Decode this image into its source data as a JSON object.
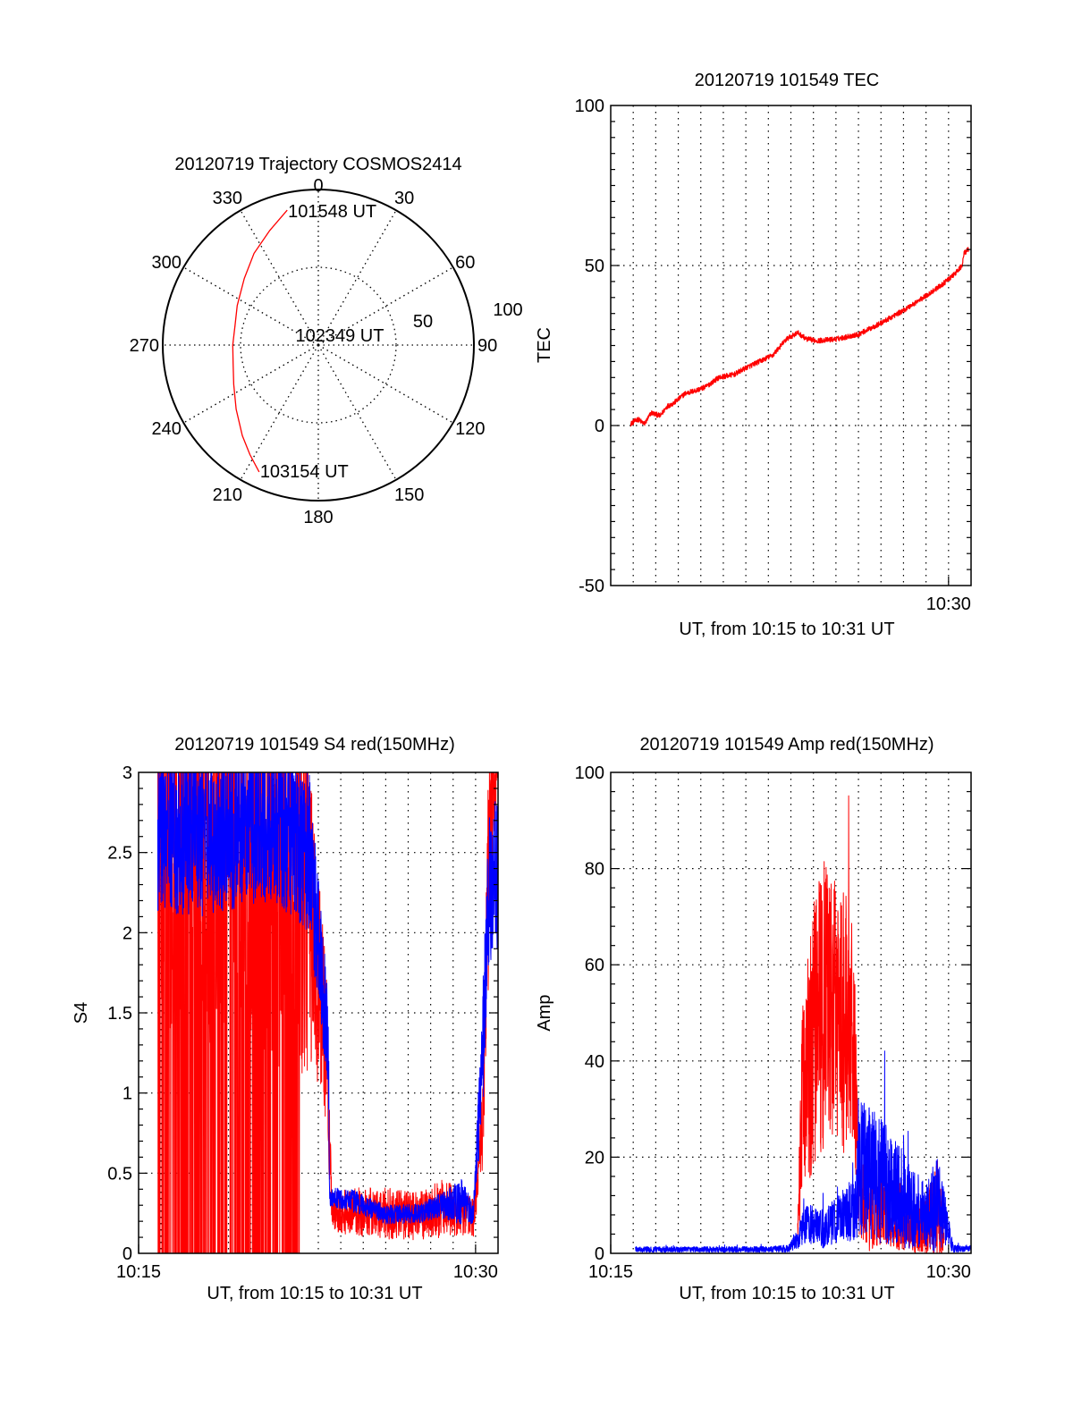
{
  "colors": {
    "red": "#ff0000",
    "blue": "#0000ff",
    "axis": "#000000",
    "grid": "#000000"
  },
  "chart_data": [
    {
      "id": "trajectory",
      "type": "polar",
      "title": "20120719 Trajectory COSMOS2414",
      "azimuth_labels": [
        "0",
        "30",
        "60",
        "90",
        "120",
        "150",
        "180",
        "210",
        "240",
        "270",
        "300",
        "330"
      ],
      "azimuth_values": [
        0,
        30,
        60,
        90,
        120,
        150,
        180,
        210,
        240,
        270,
        300,
        330
      ],
      "radial_labels": [
        "50",
        "100"
      ],
      "radial_values": [
        50,
        100
      ],
      "rlim": [
        0,
        100
      ],
      "grid": true,
      "series": [
        {
          "name": "trajectory",
          "color": "red",
          "points_az_r": [
            [
              347,
              89
            ],
            [
              337,
              80
            ],
            [
              325,
              72
            ],
            [
              312,
              64
            ],
            [
              296,
              58
            ],
            [
              283,
              55
            ],
            [
              270,
              55
            ],
            [
              258,
              56
            ],
            [
              245,
              60
            ],
            [
              232,
              67
            ],
            [
              220,
              76
            ],
            [
              212,
              83
            ],
            [
              205,
              90
            ]
          ]
        }
      ],
      "annotations": [
        {
          "text": "101548 UT",
          "az": 347,
          "r": 89
        },
        {
          "text": "102349 UT",
          "az": 0,
          "r": 0
        },
        {
          "text": "103154 UT",
          "az": 205,
          "r": 90
        }
      ]
    },
    {
      "id": "tec",
      "type": "line",
      "title": "20120719 101549 TEC",
      "xlabel": "UT, from 10:15 to 10:31 UT",
      "ylabel": "TEC",
      "xlim_minutes": [
        0,
        16
      ],
      "ylim": [
        -50,
        100
      ],
      "yticks": [
        -50,
        0,
        50,
        100
      ],
      "ytick_labels": [
        "-50",
        "0",
        "50",
        "100"
      ],
      "yminor_step": 5,
      "xtick_minutes": [
        15
      ],
      "xtick_labels": [
        "10:30"
      ],
      "xgrid_minutes": [
        1,
        2,
        3,
        4,
        5,
        6,
        7,
        8,
        9,
        10,
        11,
        12,
        13,
        14,
        15
      ],
      "ygrid": [
        0,
        50
      ],
      "grid": true,
      "series": [
        {
          "name": "TEC",
          "color": "red",
          "noise": 0.8,
          "x_minutes": [
            0.88,
            1.2,
            1.5,
            1.8,
            2.2,
            2.5,
            2.8,
            3.3,
            3.8,
            4.2,
            4.8,
            5.5,
            6.0,
            6.6,
            7.2,
            7.8,
            8.3,
            8.7,
            9.2,
            10.0,
            11.0,
            12.0,
            13.0,
            14.0,
            14.8,
            15.3,
            15.6,
            15.7,
            15.9
          ],
          "y": [
            0.5,
            2,
            0.5,
            4,
            3,
            6,
            7,
            10,
            11,
            12,
            15,
            16,
            18,
            20,
            22,
            27,
            29,
            27,
            26.5,
            27,
            28.5,
            32,
            36,
            40.5,
            44.5,
            47.5,
            50,
            54,
            55
          ]
        }
      ]
    },
    {
      "id": "s4",
      "type": "line",
      "title": "20120719 101549 S4 red(150MHz)",
      "xlabel": "UT, from 10:15 to 10:31 UT",
      "ylabel": "S4",
      "xlim_minutes": [
        0,
        16
      ],
      "ylim": [
        0,
        3
      ],
      "yticks": [
        0,
        0.5,
        1,
        1.5,
        2,
        2.5,
        3
      ],
      "ytick_labels": [
        "0",
        "0.5",
        "1",
        "1.5",
        "2",
        "2.5",
        "3"
      ],
      "yminor_step": 0.1,
      "xtick_minutes": [
        0,
        15
      ],
      "xtick_labels": [
        "10:15",
        "10:30"
      ],
      "xgrid_minutes": [
        1,
        2,
        3,
        4,
        5,
        6,
        7,
        8,
        9,
        10,
        11,
        12,
        13,
        14,
        15
      ],
      "ygrid": [
        0.5,
        1,
        1.5,
        2,
        2.5
      ],
      "grid": true,
      "series": [
        {
          "name": "S4 red",
          "color": "red",
          "style": "spiky",
          "x_minutes": [
            0.85,
            3.0,
            6.0,
            7.6,
            8.1,
            8.4,
            8.6,
            8.9,
            9.5,
            11.0,
            12.5,
            13.5,
            14.3,
            14.9,
            15.3,
            15.6,
            16.0
          ],
          "y": [
            2.8,
            2.7,
            2.6,
            2.2,
            1.6,
            1.2,
            0.28,
            0.27,
            0.26,
            0.25,
            0.23,
            0.28,
            0.26,
            0.22,
            0.8,
            2.5,
            3.2
          ],
          "spread": [
            2.8,
            2.8,
            2.8,
            1.0,
            0.6,
            0.5,
            0.12,
            0.14,
            0.15,
            0.16,
            0.15,
            0.18,
            0.15,
            0.12,
            0.3,
            0.8,
            0.2
          ]
        },
        {
          "name": "S4 blue",
          "color": "blue",
          "style": "spiky",
          "x_minutes": [
            0.85,
            3.0,
            6.0,
            7.6,
            8.1,
            8.45,
            8.5,
            9.5,
            11.0,
            12.5,
            13.5,
            14.4,
            14.9,
            15.3,
            15.6,
            16.0
          ],
          "y": [
            2.6,
            2.6,
            2.7,
            2.5,
            1.8,
            1.3,
            0.35,
            0.33,
            0.24,
            0.25,
            0.3,
            0.32,
            0.24,
            1.2,
            2.3,
            2.4
          ],
          "spread": [
            0.5,
            0.5,
            0.5,
            0.5,
            0.4,
            0.3,
            0.06,
            0.07,
            0.06,
            0.06,
            0.08,
            0.15,
            0.06,
            0.4,
            0.5,
            0.5
          ]
        }
      ]
    },
    {
      "id": "amp",
      "type": "line",
      "title": "20120719 101549 Amp red(150MHz)",
      "xlabel": "UT, from 10:15 to 10:31 UT",
      "ylabel": "Amp",
      "xlim_minutes": [
        0,
        16
      ],
      "ylim": [
        0,
        100
      ],
      "yticks": [
        0,
        20,
        40,
        60,
        80,
        100
      ],
      "ytick_labels": [
        "0",
        "20",
        "40",
        "60",
        "80",
        "100"
      ],
      "yminor_step": 4,
      "xtick_minutes": [
        0,
        15
      ],
      "xtick_labels": [
        "10:15",
        "10:30"
      ],
      "xgrid_minutes": [
        1,
        2,
        3,
        4,
        5,
        6,
        7,
        8,
        9,
        10,
        11,
        12,
        13,
        14,
        15
      ],
      "ygrid": [
        20,
        40,
        60,
        80
      ],
      "grid": true,
      "series": [
        {
          "name": "Amp red",
          "color": "red",
          "style": "band",
          "x_minutes": [
            8.3,
            8.5,
            9.0,
            9.5,
            10.0,
            10.5,
            10.8,
            11.0,
            11.5,
            12.0,
            12.5,
            13.0,
            14.0,
            14.5,
            14.8
          ],
          "y": [
            4,
            30,
            45,
            52,
            50,
            48,
            44,
            12,
            8,
            10,
            7,
            5,
            6,
            8,
            4
          ],
          "spread": [
            3,
            20,
            28,
            30,
            28,
            28,
            24,
            8,
            8,
            8,
            6,
            5,
            6,
            12,
            3
          ]
        },
        {
          "name": "Amp blue",
          "color": "blue",
          "style": "band",
          "x_minutes": [
            1.1,
            3.0,
            5.0,
            7.0,
            7.9,
            8.3,
            8.6,
            9.0,
            9.5,
            10.0,
            10.5,
            10.9,
            11.0,
            11.5,
            12.0,
            12.5,
            13.0,
            13.5,
            14.0,
            14.5,
            14.8,
            15.2,
            16.0
          ],
          "y": [
            0.8,
            0.8,
            0.8,
            0.8,
            1.0,
            3,
            6,
            6,
            5,
            7,
            8,
            9,
            18,
            17,
            15,
            14,
            11,
            9,
            8,
            10,
            8,
            1,
            1
          ],
          "spread": [
            0.6,
            0.6,
            0.6,
            0.6,
            0.8,
            2,
            4,
            4,
            4,
            5,
            6,
            6,
            15,
            14,
            13,
            12,
            10,
            8,
            7,
            10,
            6,
            0.8,
            0.6
          ]
        }
      ]
    }
  ]
}
